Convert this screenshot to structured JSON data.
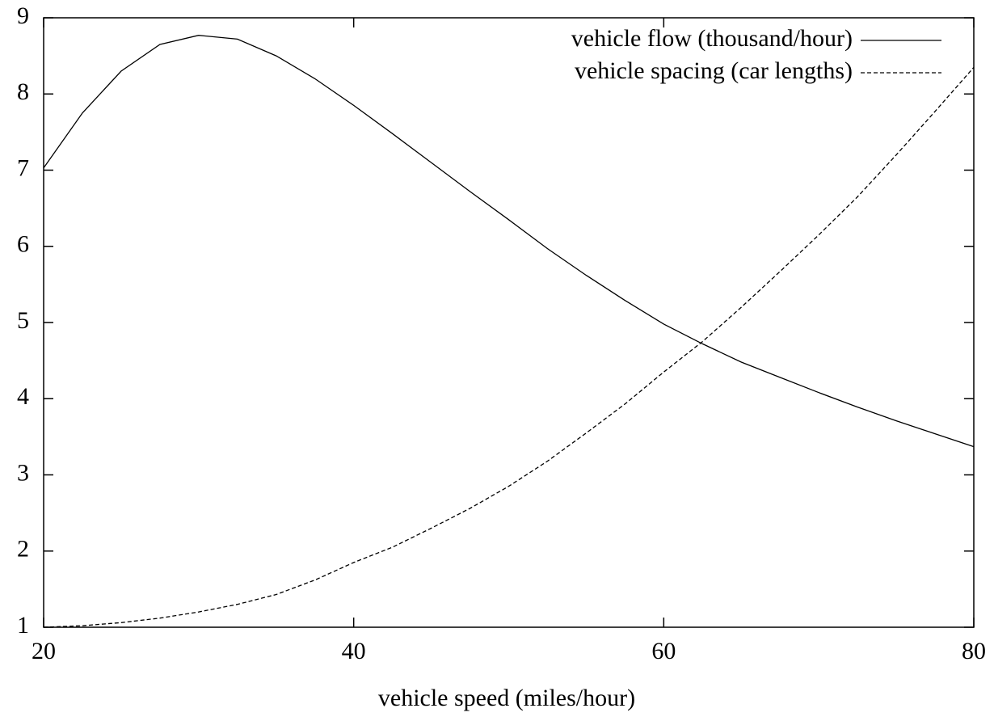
{
  "chart_data": {
    "type": "line",
    "xlabel": "vehicle speed (miles/hour)",
    "x": [
      20,
      22.5,
      25,
      27.5,
      30,
      32.5,
      35,
      37.5,
      40,
      42.5,
      45,
      47.5,
      50,
      52.5,
      55,
      57.5,
      60,
      62.5,
      65,
      67.5,
      70,
      72.5,
      75,
      77.5,
      80
    ],
    "series": [
      {
        "name": "vehicle flow (thousand/hour)",
        "color": "#000000",
        "line_style": "solid",
        "values": [
          7.03,
          7.75,
          8.3,
          8.65,
          8.77,
          8.72,
          8.5,
          8.2,
          7.85,
          7.48,
          7.1,
          6.72,
          6.35,
          5.97,
          5.62,
          5.29,
          4.98,
          4.72,
          4.48,
          4.28,
          4.08,
          3.89,
          3.71,
          3.54,
          3.37
        ]
      },
      {
        "name": "vehicle spacing (car lengths)",
        "color": "#000000",
        "line_style": "dashed",
        "values": [
          1.0,
          1.02,
          1.06,
          1.12,
          1.2,
          1.3,
          1.43,
          1.62,
          1.85,
          2.05,
          2.3,
          2.56,
          2.85,
          3.18,
          3.55,
          3.93,
          4.35,
          4.75,
          5.2,
          5.67,
          6.15,
          6.65,
          7.2,
          7.77,
          8.35
        ]
      }
    ],
    "xlim": [
      20,
      80
    ],
    "xticks": [
      20,
      40,
      60,
      80
    ],
    "ylim": [
      1,
      9
    ],
    "yticks": [
      1,
      2,
      3,
      4,
      5,
      6,
      7,
      8,
      9
    ],
    "legend": "top-right"
  }
}
